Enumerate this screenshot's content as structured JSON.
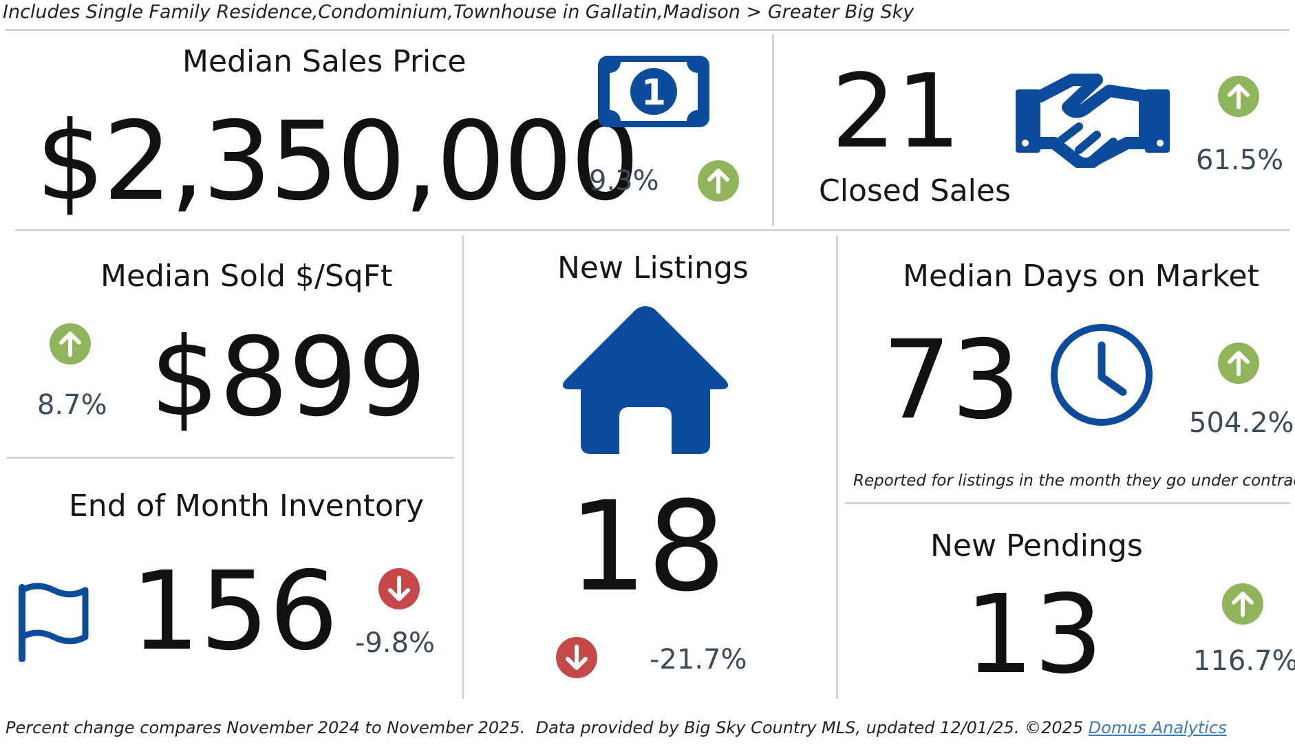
{
  "header": {
    "subtitle": "Includes Single Family Residence,Condominium,Townhouse in Gallatin,Madison > Greater Big Sky"
  },
  "colors": {
    "icon_blue": "#0d4c9c",
    "up_green": "#8fb45a",
    "down_red": "#c64848",
    "percent_text": "#3b4a5a",
    "link_blue": "#3a7bbf"
  },
  "median_sales_price": {
    "title": "Median Sales Price",
    "value": "$2,350,000",
    "change": "9.3%",
    "direction": "up",
    "icon": "dollar-bill-icon"
  },
  "closed_sales": {
    "title": "Closed Sales",
    "value": "21",
    "change": "61.5%",
    "direction": "up",
    "icon": "handshake-icon"
  },
  "median_sold_sqft": {
    "title": "Median Sold $/SqFt",
    "value": "$899",
    "change": "8.7%",
    "direction": "up"
  },
  "new_listings": {
    "title": "New Listings",
    "value": "18",
    "change": "-21.7%",
    "direction": "down",
    "icon": "house-icon"
  },
  "median_days_on_market": {
    "title": "Median Days on Market",
    "value": "73",
    "change": "504.2%",
    "direction": "up",
    "note": "Reported for listings in the month they go under contract.",
    "icon": "clock-icon"
  },
  "end_of_month_inventory": {
    "title": "End of Month Inventory",
    "value": "156",
    "change": "-9.8%",
    "direction": "down",
    "icon": "flag-icon"
  },
  "new_pendings": {
    "title": "New Pendings",
    "value": "13",
    "change": "116.7%",
    "direction": "up"
  },
  "footer": {
    "text": "Percent change compares November 2024 to November 2025.  Data provided by Big Sky Country MLS, updated 12/01/25. ©2025 ",
    "link_label": "Domus Analytics"
  }
}
